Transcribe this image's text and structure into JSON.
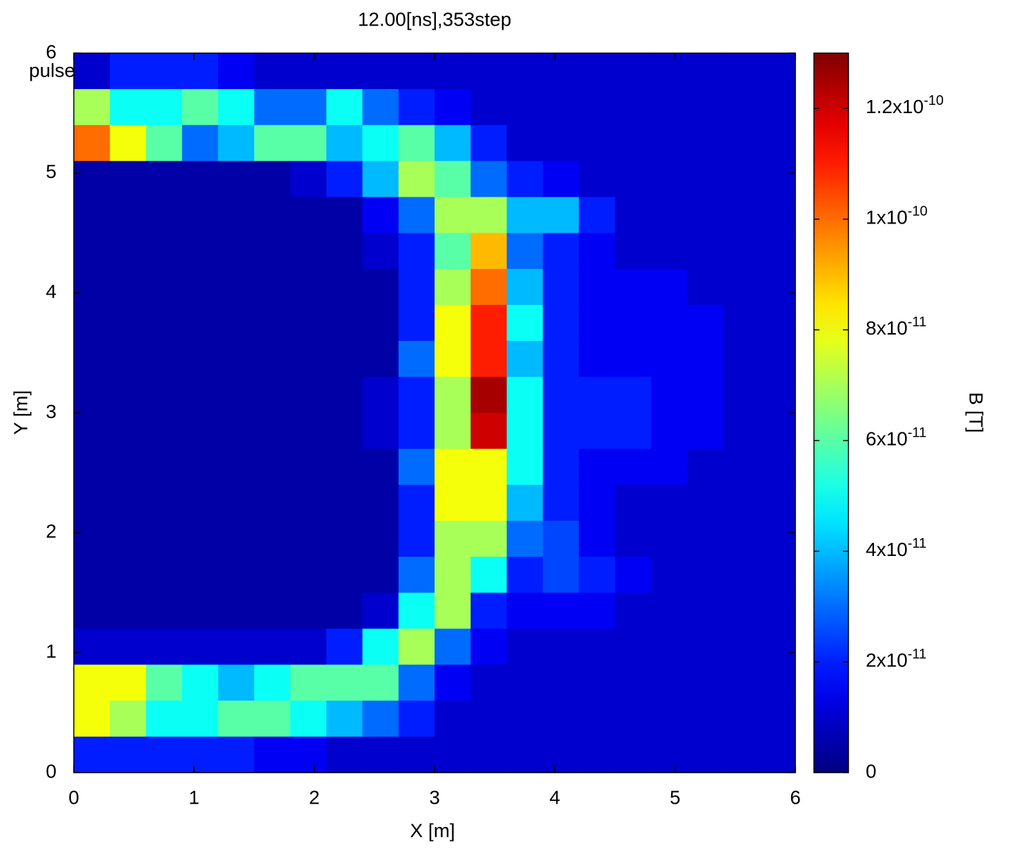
{
  "chart_data": {
    "type": "heatmap",
    "title": "12.00[ns],353step",
    "annotation": "pulse",
    "x_label": "X [m]",
    "y_label": "Y [m]",
    "colorbar_label": "B [T]",
    "xlim": [
      0,
      6
    ],
    "ylim": [
      0,
      6
    ],
    "xticks": [
      0,
      1,
      2,
      3,
      4,
      5,
      6
    ],
    "yticks": [
      0,
      1,
      2,
      3,
      4,
      5,
      6
    ],
    "zlim": [
      0,
      1.3e-10
    ],
    "colormap": "jet",
    "zticks": [
      0,
      {
        "value": 2e-11,
        "label": "2x10",
        "exponent": "-11"
      },
      {
        "value": 4e-11,
        "label": "4x10",
        "exponent": "-11"
      },
      {
        "value": 6e-11,
        "label": "6x10",
        "exponent": "-11"
      },
      {
        "value": 8e-11,
        "label": "8x10",
        "exponent": "-11"
      },
      {
        "value": 1e-10,
        "label": "1x10",
        "exponent": "-10"
      },
      {
        "value": 1.2e-10,
        "label": "1.2x10",
        "exponent": "-10"
      }
    ],
    "z": [
      [
        1e-11,
        2e-11,
        2e-11,
        2e-11,
        1.5e-11,
        1e-11,
        1e-11,
        1e-11,
        1e-11,
        1e-11,
        1e-11,
        1e-11,
        1e-11,
        1e-11,
        1e-11,
        1e-11,
        1e-11,
        1e-11,
        1e-11,
        1e-11
      ],
      [
        7e-11,
        5e-11,
        5e-11,
        6e-11,
        5e-11,
        3e-11,
        3e-11,
        5e-11,
        3e-11,
        2e-11,
        1.5e-11,
        1e-11,
        1e-11,
        1e-11,
        1e-11,
        1e-11,
        1e-11,
        1e-11,
        1e-11,
        1e-11
      ],
      [
        1e-10,
        8e-11,
        6e-11,
        3e-11,
        4e-11,
        6e-11,
        6e-11,
        4e-11,
        5e-11,
        6e-11,
        4e-11,
        2e-11,
        1e-11,
        1e-11,
        1e-11,
        1e-11,
        1e-11,
        1e-11,
        1e-11,
        1e-11
      ],
      [
        5e-12,
        5e-12,
        5e-12,
        5e-12,
        5e-12,
        5e-12,
        1e-11,
        2e-11,
        4e-11,
        7e-11,
        6e-11,
        3e-11,
        2e-11,
        1.5e-11,
        1e-11,
        1e-11,
        1e-11,
        1e-11,
        1e-11,
        1e-11
      ],
      [
        5e-12,
        5e-12,
        5e-12,
        5e-12,
        5e-12,
        5e-12,
        5e-12,
        5e-12,
        1.5e-11,
        3e-11,
        7e-11,
        7e-11,
        4e-11,
        4e-11,
        2e-11,
        1e-11,
        1e-11,
        1e-11,
        1e-11,
        1e-11
      ],
      [
        5e-12,
        5e-12,
        5e-12,
        5e-12,
        5e-12,
        5e-12,
        5e-12,
        5e-12,
        1e-11,
        2e-11,
        6e-11,
        9e-11,
        3e-11,
        2e-11,
        1.5e-11,
        1e-11,
        1e-11,
        1e-11,
        1e-11,
        1e-11
      ],
      [
        5e-12,
        5e-12,
        5e-12,
        5e-12,
        5e-12,
        5e-12,
        5e-12,
        5e-12,
        5e-12,
        2e-11,
        7e-11,
        1e-10,
        4e-11,
        2e-11,
        1.5e-11,
        1.5e-11,
        1.5e-11,
        1e-11,
        1e-11,
        1e-11
      ],
      [
        5e-12,
        5e-12,
        5e-12,
        5e-12,
        5e-12,
        5e-12,
        5e-12,
        5e-12,
        5e-12,
        2e-11,
        8e-11,
        1.1e-10,
        5e-11,
        2e-11,
        1.5e-11,
        1.5e-11,
        1.5e-11,
        1.5e-11,
        1e-11,
        1e-11
      ],
      [
        5e-12,
        5e-12,
        5e-12,
        5e-12,
        5e-12,
        5e-12,
        5e-12,
        5e-12,
        5e-12,
        3e-11,
        8e-11,
        1.1e-10,
        4e-11,
        2e-11,
        1.5e-11,
        1.5e-11,
        1.5e-11,
        1.5e-11,
        1e-11,
        1e-11
      ],
      [
        5e-12,
        5e-12,
        5e-12,
        5e-12,
        5e-12,
        5e-12,
        5e-12,
        5e-12,
        1e-11,
        2e-11,
        7e-11,
        1.25e-10,
        5e-11,
        2e-11,
        2e-11,
        2e-11,
        1.5e-11,
        1.5e-11,
        1e-11,
        1e-11
      ],
      [
        5e-12,
        5e-12,
        5e-12,
        5e-12,
        5e-12,
        5e-12,
        5e-12,
        5e-12,
        1e-11,
        2e-11,
        7e-11,
        1.2e-10,
        5e-11,
        2e-11,
        2e-11,
        2e-11,
        1.5e-11,
        1.5e-11,
        1e-11,
        1e-11
      ],
      [
        5e-12,
        5e-12,
        5e-12,
        5e-12,
        5e-12,
        5e-12,
        5e-12,
        5e-12,
        5e-12,
        3e-11,
        8e-11,
        8e-11,
        5e-11,
        2e-11,
        1.5e-11,
        1.5e-11,
        1.5e-11,
        1e-11,
        1e-11,
        1e-11
      ],
      [
        5e-12,
        5e-12,
        5e-12,
        5e-12,
        5e-12,
        5e-12,
        5e-12,
        5e-12,
        5e-12,
        2e-11,
        8e-11,
        8e-11,
        4e-11,
        2e-11,
        1.5e-11,
        1e-11,
        1e-11,
        1e-11,
        1e-11,
        1e-11
      ],
      [
        5e-12,
        5e-12,
        5e-12,
        5e-12,
        5e-12,
        5e-12,
        5e-12,
        5e-12,
        5e-12,
        2e-11,
        7e-11,
        7e-11,
        3e-11,
        2.5e-11,
        1.5e-11,
        1e-11,
        1e-11,
        1e-11,
        1e-11,
        1e-11
      ],
      [
        5e-12,
        5e-12,
        5e-12,
        5e-12,
        5e-12,
        5e-12,
        5e-12,
        5e-12,
        5e-12,
        3e-11,
        7e-11,
        5e-11,
        2e-11,
        2.5e-11,
        2e-11,
        1.5e-11,
        1e-11,
        1e-11,
        1e-11,
        1e-11
      ],
      [
        5e-12,
        5e-12,
        5e-12,
        5e-12,
        5e-12,
        5e-12,
        5e-12,
        5e-12,
        1e-11,
        5e-11,
        7e-11,
        2e-11,
        1.5e-11,
        1.5e-11,
        1.5e-11,
        1e-11,
        1e-11,
        1e-11,
        1e-11,
        1e-11
      ],
      [
        1e-11,
        1e-11,
        1e-11,
        1e-11,
        1e-11,
        1e-11,
        1e-11,
        2e-11,
        5e-11,
        7e-11,
        3e-11,
        1.5e-11,
        1e-11,
        1e-11,
        1e-11,
        1e-11,
        1e-11,
        1e-11,
        1e-11,
        1e-11
      ],
      [
        8e-11,
        8e-11,
        6e-11,
        5e-11,
        4e-11,
        5e-11,
        6e-11,
        6e-11,
        6e-11,
        3e-11,
        1.5e-11,
        1e-11,
        1e-11,
        1e-11,
        1e-11,
        1e-11,
        1e-11,
        1e-11,
        1e-11,
        1e-11
      ],
      [
        8e-11,
        7e-11,
        5e-11,
        5e-11,
        6e-11,
        6e-11,
        5e-11,
        4e-11,
        3e-11,
        2e-11,
        1e-11,
        1e-11,
        1e-11,
        1e-11,
        1e-11,
        1e-11,
        1e-11,
        1e-11,
        1e-11,
        1e-11
      ],
      [
        2e-11,
        2e-11,
        2e-11,
        2e-11,
        2e-11,
        1.5e-11,
        1.5e-11,
        1e-11,
        1e-11,
        1e-11,
        1e-11,
        1e-11,
        1e-11,
        1e-11,
        1e-11,
        1e-11,
        1e-11,
        1e-11,
        1e-11,
        1e-11
      ]
    ]
  }
}
